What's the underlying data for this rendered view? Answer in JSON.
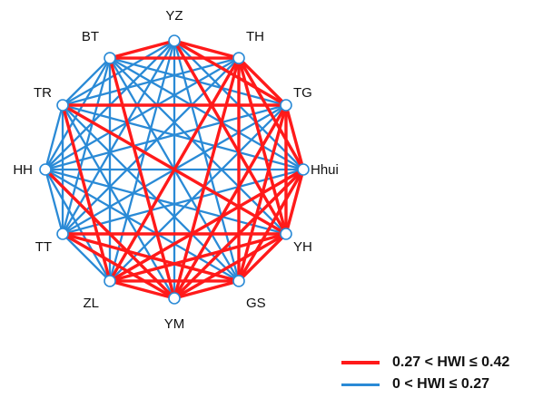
{
  "diagram": {
    "nodes": [
      {
        "id": "YZ",
        "label": "YZ"
      },
      {
        "id": "TH",
        "label": "TH"
      },
      {
        "id": "TG",
        "label": "TG"
      },
      {
        "id": "Hhui",
        "label": "Hhui"
      },
      {
        "id": "YH",
        "label": "YH"
      },
      {
        "id": "GS",
        "label": "GS"
      },
      {
        "id": "YM",
        "label": "YM"
      },
      {
        "id": "ZL",
        "label": "ZL"
      },
      {
        "id": "TT",
        "label": "TT"
      },
      {
        "id": "HH",
        "label": "HH"
      },
      {
        "id": "TR",
        "label": "TR"
      },
      {
        "id": "BT",
        "label": "BT"
      }
    ],
    "edge_colors": {
      "high": "#ff1a1a",
      "low": "#2a8ad6"
    },
    "high_edges": [
      [
        "YZ",
        "TH"
      ],
      [
        "YZ",
        "TG"
      ],
      [
        "YZ",
        "YH"
      ],
      [
        "YZ",
        "BT"
      ],
      [
        "BT",
        "TH"
      ],
      [
        "TH",
        "TG"
      ],
      [
        "TH",
        "Hhui"
      ],
      [
        "TH",
        "YH"
      ],
      [
        "TH",
        "GS"
      ],
      [
        "TH",
        "YM"
      ],
      [
        "TH",
        "ZL"
      ],
      [
        "TG",
        "Hhui"
      ],
      [
        "TG",
        "YH"
      ],
      [
        "TG",
        "GS"
      ],
      [
        "TG",
        "YM"
      ],
      [
        "TG",
        "TR"
      ],
      [
        "Hhui",
        "YH"
      ],
      [
        "Hhui",
        "GS"
      ],
      [
        "Hhui",
        "YM"
      ],
      [
        "Hhui",
        "ZL"
      ],
      [
        "YH",
        "GS"
      ],
      [
        "YH",
        "YM"
      ],
      [
        "YH",
        "ZL"
      ],
      [
        "YH",
        "TT"
      ],
      [
        "GS",
        "YM"
      ],
      [
        "GS",
        "ZL"
      ],
      [
        "GS",
        "TT"
      ],
      [
        "YM",
        "ZL"
      ],
      [
        "YM",
        "TT"
      ],
      [
        "YM",
        "HH"
      ],
      [
        "YM",
        "BT"
      ],
      [
        "ZL",
        "TR"
      ],
      [
        "TR",
        "YH"
      ]
    ]
  },
  "legend": [
    {
      "label": "0.27 < HWI ≤  0.42",
      "color": "#ff1a1a"
    },
    {
      "label": "0 < HWI ≤ 0.27",
      "color": "#2a8ad6"
    }
  ]
}
